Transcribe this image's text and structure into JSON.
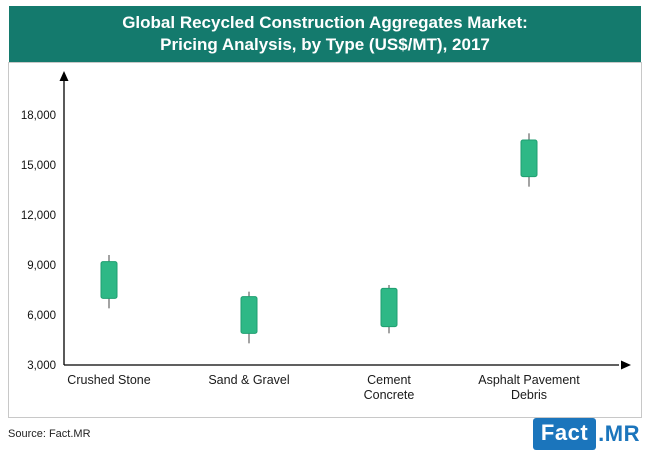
{
  "header": {
    "title_line1": "Global Recycled Construction Aggregates Market:",
    "title_line2": "Pricing Analysis, by Type (US$/MT), 2017"
  },
  "footer": {
    "source": "Source: Fact.MR",
    "logo_fact": "Fact",
    "logo_mr": ".MR"
  },
  "colors": {
    "header_bg": "#147a6d",
    "box_fill": "#2eb886",
    "box_border": "#1f9e70",
    "whisker": "#8c8c8c",
    "axis": "#000000",
    "logo_blue": "#1b75bc"
  },
  "chart_data": {
    "type": "candlestick",
    "title": "Global Recycled Construction Aggregates Market: Pricing Analysis, by Type (US$/MT), 2017",
    "xlabel": "",
    "ylabel": "",
    "ylim": [
      3000,
      18000
    ],
    "yticks": [
      3000,
      6000,
      9000,
      12000,
      15000,
      18000
    ],
    "grid": false,
    "legend": "none",
    "categories": [
      [
        "Crushed Stone"
      ],
      [
        "Sand & Gravel"
      ],
      [
        "Cement",
        "Concrete"
      ],
      [
        "Asphalt Pavement",
        "Debris"
      ]
    ],
    "points": [
      {
        "category": "Crushed Stone",
        "whisker_low": 6400,
        "box_low": 7000,
        "box_high": 9200,
        "whisker_high": 9600
      },
      {
        "category": "Sand & Gravel",
        "whisker_low": 4300,
        "box_low": 4900,
        "box_high": 7100,
        "whisker_high": 7400
      },
      {
        "category": "Cement Concrete",
        "whisker_low": 4900,
        "box_low": 5300,
        "box_high": 7600,
        "whisker_high": 7800
      },
      {
        "category": "Asphalt Pavement Debris",
        "whisker_low": 13700,
        "box_low": 14300,
        "box_high": 16500,
        "whisker_high": 16900
      }
    ]
  }
}
